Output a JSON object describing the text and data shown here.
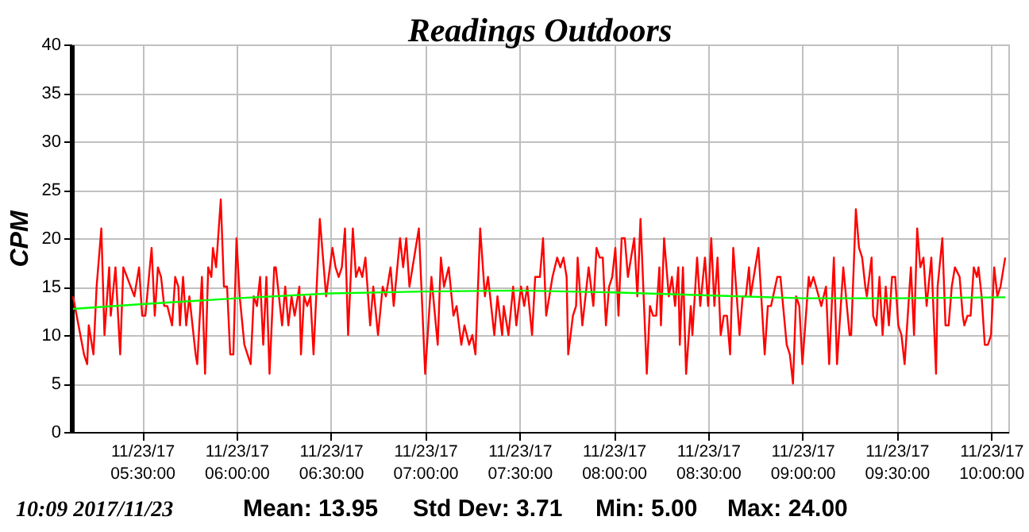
{
  "chart_data": {
    "type": "line",
    "title": "Readings Outdoors",
    "ylabel": "CPM",
    "annotations": [
      "10:09   2017/11/23",
      "Mean: 13.95",
      "Std Dev: 3.71",
      "Min: 5.00",
      "Max: 24.00"
    ],
    "xlim": [
      "2017-11-23T05:07:30",
      "2017-11-23T10:05:30"
    ],
    "ylim": [
      0,
      40
    ],
    "xticks": [
      {
        "value": "2017-11-23T05:30",
        "label": "11/23/17 05:30:00"
      },
      {
        "value": "2017-11-23T06:00",
        "label": "11/23/17 06:00:00"
      },
      {
        "value": "2017-11-23T06:30",
        "label": "11/23/17 06:30:00"
      },
      {
        "value": "2017-11-23T07:00",
        "label": "11/23/17 07:00:00"
      },
      {
        "value": "2017-11-23T07:30",
        "label": "11/23/17 07:30:00"
      },
      {
        "value": "2017-11-23T08:00",
        "label": "11/23/17 08:00:00"
      },
      {
        "value": "2017-11-23T08:30",
        "label": "11/23/17 08:30:00"
      },
      {
        "value": "2017-11-23T09:00",
        "label": "11/23/17 09:00:00"
      },
      {
        "value": "2017-11-23T09:30",
        "label": "11/23/17 09:30:00"
      },
      {
        "value": "2017-11-23T10:00",
        "label": "11/23/17 10:00:00"
      }
    ],
    "yticks": [
      0,
      5,
      10,
      15,
      20,
      25,
      30,
      35,
      40
    ],
    "grid": true,
    "marker": "none",
    "line_style": "solid",
    "series": [
      {
        "color": "#ff0000",
        "x": [
          "2017-11-23T05:08:00",
          "2017-11-23T05:11:30",
          "2017-11-23T05:12:30",
          "2017-11-23T05:13:00",
          "2017-11-23T05:14:30",
          "2017-11-23T05:15:30",
          "2017-11-23T05:17:00",
          "2017-11-23T05:18:00",
          "2017-11-23T05:19:30",
          "2017-11-23T05:20:00",
          "2017-11-23T05:21:30",
          "2017-11-23T05:23:00",
          "2017-11-23T05:24:00",
          "2017-11-23T05:27:30",
          "2017-11-23T05:29:00",
          "2017-11-23T05:30:00",
          "2017-11-23T05:31:00",
          "2017-11-23T05:33:00",
          "2017-11-23T05:34:00",
          "2017-11-23T05:35:00",
          "2017-11-23T05:36:00",
          "2017-11-23T05:37:00",
          "2017-11-23T05:38:00",
          "2017-11-23T05:39:30",
          "2017-11-23T05:40:30",
          "2017-11-23T05:41:30",
          "2017-11-23T05:42:00",
          "2017-11-23T05:43:00",
          "2017-11-23T05:44:00",
          "2017-11-23T05:45:00",
          "2017-11-23T05:47:00",
          "2017-11-23T05:47:30",
          "2017-11-23T05:49:00",
          "2017-11-23T05:50:00",
          "2017-11-23T05:51:00",
          "2017-11-23T05:52:00",
          "2017-11-23T05:52:30",
          "2017-11-23T05:53:30",
          "2017-11-23T05:55:00",
          "2017-11-23T05:56:00",
          "2017-11-23T05:57:00",
          "2017-11-23T05:58:00",
          "2017-11-23T05:59:00",
          "2017-11-23T06:00:00",
          "2017-11-23T06:01:00",
          "2017-11-23T06:02:30",
          "2017-11-23T06:04:30",
          "2017-11-23T06:05:30",
          "2017-11-23T06:06:30",
          "2017-11-23T06:07:30",
          "2017-11-23T06:08:30",
          "2017-11-23T06:09:30",
          "2017-11-23T06:10:30",
          "2017-11-23T06:12:00",
          "2017-11-23T06:12:30",
          "2017-11-23T06:14:30",
          "2017-11-23T06:15:30",
          "2017-11-23T06:16:30",
          "2017-11-23T06:17:30",
          "2017-11-23T06:18:30",
          "2017-11-23T06:20:00",
          "2017-11-23T06:20:30",
          "2017-11-23T06:21:30",
          "2017-11-23T06:22:30",
          "2017-11-23T06:23:30",
          "2017-11-23T06:24:30",
          "2017-11-23T06:26:30",
          "2017-11-23T06:28:30",
          "2017-11-23T06:30:30",
          "2017-11-23T06:31:30",
          "2017-11-23T06:32:30",
          "2017-11-23T06:33:30",
          "2017-11-23T06:34:30",
          "2017-11-23T06:35:30",
          "2017-11-23T06:37:00",
          "2017-11-23T06:38:00",
          "2017-11-23T06:39:00",
          "2017-11-23T06:40:00",
          "2017-11-23T06:41:00",
          "2017-11-23T06:42:30",
          "2017-11-23T06:43:30",
          "2017-11-23T06:45:00",
          "2017-11-23T06:46:30",
          "2017-11-23T06:47:30",
          "2017-11-23T06:49:00",
          "2017-11-23T06:50:00",
          "2017-11-23T06:52:00",
          "2017-11-23T06:53:00",
          "2017-11-23T06:54:00",
          "2017-11-23T06:55:00",
          "2017-11-23T06:58:00",
          "2017-11-23T07:00:00",
          "2017-11-23T07:02:00",
          "2017-11-23T07:04:00",
          "2017-11-23T07:05:00",
          "2017-11-23T07:06:00",
          "2017-11-23T07:07:30",
          "2017-11-23T07:09:00",
          "2017-11-23T07:10:00",
          "2017-11-23T07:11:30",
          "2017-11-23T07:12:30",
          "2017-11-23T07:14:00",
          "2017-11-23T07:15:00",
          "2017-11-23T07:16:00",
          "2017-11-23T07:17:30",
          "2017-11-23T07:19:00",
          "2017-11-23T07:20:00",
          "2017-11-23T07:22:00",
          "2017-11-23T07:23:00",
          "2017-11-23T07:24:30",
          "2017-11-23T07:25:00",
          "2017-11-23T07:26:30",
          "2017-11-23T07:28:00",
          "2017-11-23T07:29:00",
          "2017-11-23T07:30:30",
          "2017-11-23T07:31:30",
          "2017-11-23T07:32:30",
          "2017-11-23T07:34:00",
          "2017-11-23T07:35:00",
          "2017-11-23T07:36:30",
          "2017-11-23T07:37:30",
          "2017-11-23T07:38:30",
          "2017-11-23T07:40:00",
          "2017-11-23T07:40:30",
          "2017-11-23T07:42:00",
          "2017-11-23T07:43:00",
          "2017-11-23T07:44:00",
          "2017-11-23T07:45:00",
          "2017-11-23T07:45:30",
          "2017-11-23T07:47:00",
          "2017-11-23T07:48:00",
          "2017-11-23T07:48:30",
          "2017-11-23T07:50:00",
          "2017-11-23T07:52:00",
          "2017-11-23T07:53:30",
          "2017-11-23T07:54:30",
          "2017-11-23T07:55:30",
          "2017-11-23T07:56:30",
          "2017-11-23T07:57:30",
          "2017-11-23T07:58:30",
          "2017-11-23T07:59:30",
          "2017-11-23T08:00:30",
          "2017-11-23T08:01:30",
          "2017-11-23T08:02:30",
          "2017-11-23T08:03:30",
          "2017-11-23T08:04:30",
          "2017-11-23T08:06:30",
          "2017-11-23T08:07:30",
          "2017-11-23T08:08:30",
          "2017-11-23T08:10:30",
          "2017-11-23T08:11:30",
          "2017-11-23T08:12:30",
          "2017-11-23T08:13:30",
          "2017-11-23T08:14:30",
          "2017-11-23T08:15:00",
          "2017-11-23T08:16:00",
          "2017-11-23T08:17:30",
          "2017-11-23T08:18:30",
          "2017-11-23T08:19:30",
          "2017-11-23T08:20:30",
          "2017-11-23T08:21:00",
          "2017-11-23T08:22:00",
          "2017-11-23T08:23:00",
          "2017-11-23T08:24:30",
          "2017-11-23T08:25:00",
          "2017-11-23T08:26:30",
          "2017-11-23T08:27:30",
          "2017-11-23T08:29:00",
          "2017-11-23T08:30:00",
          "2017-11-23T08:31:00",
          "2017-11-23T08:32:00",
          "2017-11-23T08:33:00",
          "2017-11-23T08:34:00",
          "2017-11-23T08:35:00",
          "2017-11-23T08:36:00",
          "2017-11-23T08:37:00",
          "2017-11-23T08:38:00",
          "2017-11-23T08:40:00",
          "2017-11-23T08:41:00",
          "2017-11-23T08:42:00",
          "2017-11-23T08:43:00",
          "2017-11-23T08:43:30",
          "2017-11-23T08:46:00",
          "2017-11-23T08:48:00",
          "2017-11-23T08:49:00",
          "2017-11-23T08:50:00",
          "2017-11-23T08:52:00",
          "2017-11-23T08:53:00",
          "2017-11-23T08:55:00",
          "2017-11-23T08:56:00",
          "2017-11-23T08:57:00",
          "2017-11-23T08:58:00",
          "2017-11-23T08:59:00",
          "2017-11-23T09:00:00",
          "2017-11-23T09:02:00",
          "2017-11-23T09:02:30",
          "2017-11-23T09:03:30",
          "2017-11-23T09:06:00",
          "2017-11-23T09:07:30",
          "2017-11-23T09:08:30",
          "2017-11-23T09:10:00",
          "2017-11-23T09:11:00",
          "2017-11-23T09:13:00",
          "2017-11-23T09:15:00",
          "2017-11-23T09:15:30",
          "2017-11-23T09:17:00",
          "2017-11-23T09:18:00",
          "2017-11-23T09:19:00",
          "2017-11-23T09:20:00",
          "2017-11-23T09:20:30",
          "2017-11-23T09:22:00",
          "2017-11-23T09:22:30",
          "2017-11-23T09:23:30",
          "2017-11-23T09:24:30",
          "2017-11-23T09:25:30",
          "2017-11-23T09:26:30",
          "2017-11-23T09:27:30",
          "2017-11-23T09:28:30",
          "2017-11-23T09:29:30",
          "2017-11-23T09:30:30",
          "2017-11-23T09:31:30",
          "2017-11-23T09:32:30",
          "2017-11-23T09:34:30",
          "2017-11-23T09:35:30",
          "2017-11-23T09:36:30",
          "2017-11-23T09:37:30",
          "2017-11-23T09:38:30",
          "2017-11-23T09:39:30",
          "2017-11-23T09:41:00",
          "2017-11-23T09:42:30",
          "2017-11-23T09:43:00",
          "2017-11-23T09:44:30",
          "2017-11-23T09:45:30",
          "2017-11-23T09:46:30",
          "2017-11-23T09:47:30",
          "2017-11-23T09:48:30",
          "2017-11-23T09:50:00",
          "2017-11-23T09:51:00",
          "2017-11-23T09:51:30",
          "2017-11-23T09:52:30",
          "2017-11-23T09:53:30",
          "2017-11-23T09:54:30",
          "2017-11-23T09:55:30",
          "2017-11-23T09:56:00",
          "2017-11-23T09:57:00",
          "2017-11-23T09:58:00",
          "2017-11-23T09:59:00",
          "2017-11-23T10:00:00",
          "2017-11-23T10:01:00",
          "2017-11-23T10:02:00",
          "2017-11-23T10:03:00",
          "2017-11-23T10:04:30"
        ],
        "values": [
          14,
          8,
          7,
          11,
          8,
          15,
          21,
          10,
          17,
          12,
          17,
          8,
          17,
          14,
          17,
          12,
          12,
          19,
          12,
          17,
          16,
          13,
          13,
          11,
          16,
          15,
          11,
          16,
          11,
          14,
          8,
          7,
          16,
          6,
          17,
          16,
          19,
          17,
          24,
          15,
          15,
          8,
          8,
          20,
          14,
          9,
          7,
          14,
          13,
          16,
          9,
          16,
          6,
          17,
          17,
          11,
          15,
          11,
          14,
          12,
          15,
          8,
          14,
          13,
          14,
          8,
          22,
          14,
          19,
          17,
          16,
          17,
          21,
          10,
          21,
          16,
          17,
          16,
          18,
          11,
          15,
          10,
          15,
          14,
          17,
          13,
          20,
          17,
          20,
          15,
          21,
          6,
          16,
          9,
          18,
          15,
          17,
          12,
          13,
          9,
          11,
          9,
          10,
          8,
          21,
          14,
          16,
          10,
          14,
          10,
          13,
          10,
          15,
          11,
          15,
          13,
          15,
          10,
          16,
          16,
          20,
          12,
          15,
          16,
          18,
          17,
          18,
          16,
          8,
          12,
          13,
          18,
          11,
          17,
          13,
          19,
          18,
          18,
          11,
          15,
          16,
          19,
          12,
          20,
          20,
          16,
          20,
          14,
          22,
          6,
          13,
          12,
          12,
          17,
          11,
          20,
          14,
          16,
          13,
          17,
          9,
          17,
          6,
          13,
          10,
          18,
          13,
          18,
          13,
          20,
          13,
          18,
          10,
          12,
          12,
          8,
          19,
          10,
          14,
          14,
          17,
          14,
          19,
          8,
          13,
          13,
          16,
          16,
          9,
          8,
          5,
          14,
          13,
          7,
          16,
          15,
          16,
          13,
          15,
          7,
          18,
          7,
          17,
          10,
          10,
          23,
          19,
          18,
          15,
          14,
          18,
          12,
          11,
          16,
          10,
          15,
          11,
          16,
          16,
          11,
          10,
          7,
          17,
          10,
          21,
          17,
          18,
          13,
          18,
          6,
          15,
          20,
          11,
          11,
          15,
          17,
          16,
          12,
          11,
          12,
          12,
          17,
          16,
          17,
          14,
          9,
          9,
          10,
          17,
          14,
          15,
          18
        ]
      },
      {
        "color": "#00ff00",
        "x": [
          "2017-11-23T05:08",
          "2017-11-23T05:30",
          "2017-11-23T06:00",
          "2017-11-23T06:30",
          "2017-11-23T07:00",
          "2017-11-23T07:30",
          "2017-11-23T08:00",
          "2017-11-23T08:30",
          "2017-11-23T09:00",
          "2017-11-23T09:30",
          "2017-11-23T10:04:30"
        ],
        "values": [
          12.7,
          13.2,
          13.8,
          14.3,
          14.5,
          14.6,
          14.4,
          14.1,
          13.8,
          13.8,
          13.9
        ]
      }
    ]
  }
}
